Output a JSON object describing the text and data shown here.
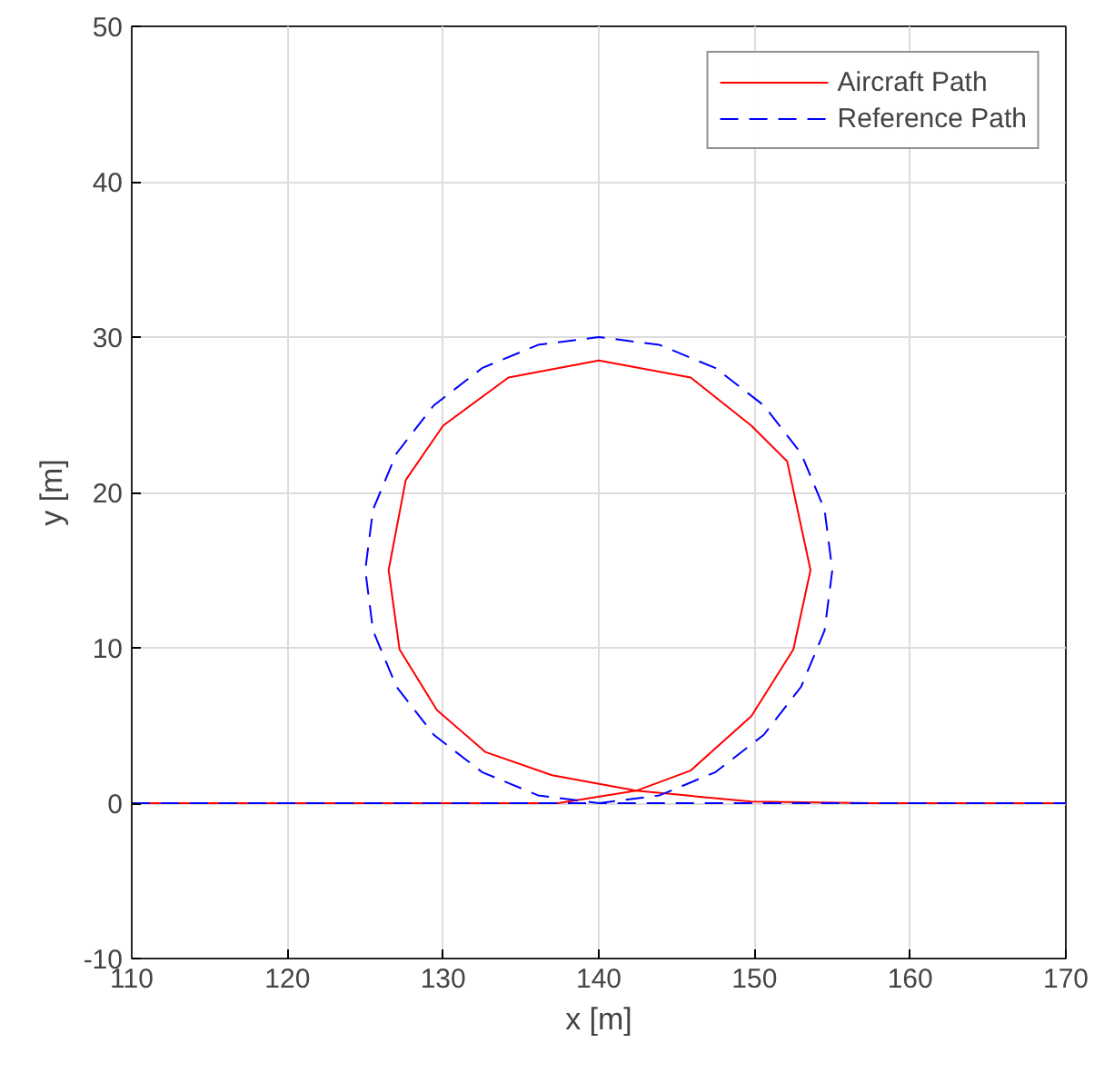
{
  "chart_data": {
    "type": "line",
    "xlabel": "x [m]",
    "ylabel": "y [m]",
    "xlim": [
      110,
      170
    ],
    "ylim": [
      -10,
      50
    ],
    "xticks": [
      110,
      120,
      130,
      140,
      150,
      160,
      170
    ],
    "yticks": [
      -10,
      0,
      10,
      20,
      30,
      40,
      50
    ],
    "grid": true,
    "legend": "top right",
    "series": [
      {
        "name": "Aircraft Path",
        "color": "#ff0000",
        "line_style": "solid",
        "x": [
          110,
          120,
          130,
          137.4,
          142.4,
          145.9,
          149.8,
          152.5,
          153.6,
          152.1,
          149.8,
          145.9,
          140,
          134.2,
          130,
          127.6,
          126.5,
          127.2,
          129.6,
          132.7,
          137,
          142.4,
          149.8,
          157.5,
          170
        ],
        "values": [
          0,
          0,
          0,
          0,
          0.8,
          2.1,
          5.6,
          9.9,
          15,
          22,
          24.3,
          27.4,
          28.5,
          27.4,
          24.3,
          20.8,
          15,
          9.9,
          6,
          3.3,
          1.8,
          0.8,
          0.1,
          0,
          0
        ]
      },
      {
        "name": "Reference Path",
        "color": "#0000ff",
        "line_style": "dashed",
        "x": [
          110,
          140,
          143.9,
          147.5,
          150.6,
          153,
          154.5,
          155,
          154.5,
          153,
          150.6,
          147.5,
          143.9,
          140,
          136.1,
          132.5,
          129.4,
          127,
          125.5,
          125,
          125.5,
          127,
          129.4,
          132.5,
          136.1,
          140,
          170
        ],
        "values": [
          0,
          0,
          0.5,
          2,
          4.4,
          7.5,
          11.1,
          15,
          18.9,
          22.5,
          25.6,
          28,
          29.5,
          30,
          29.5,
          28,
          25.6,
          22.5,
          18.9,
          15,
          11.1,
          7.5,
          4.4,
          2,
          0.5,
          0,
          0
        ]
      }
    ]
  }
}
